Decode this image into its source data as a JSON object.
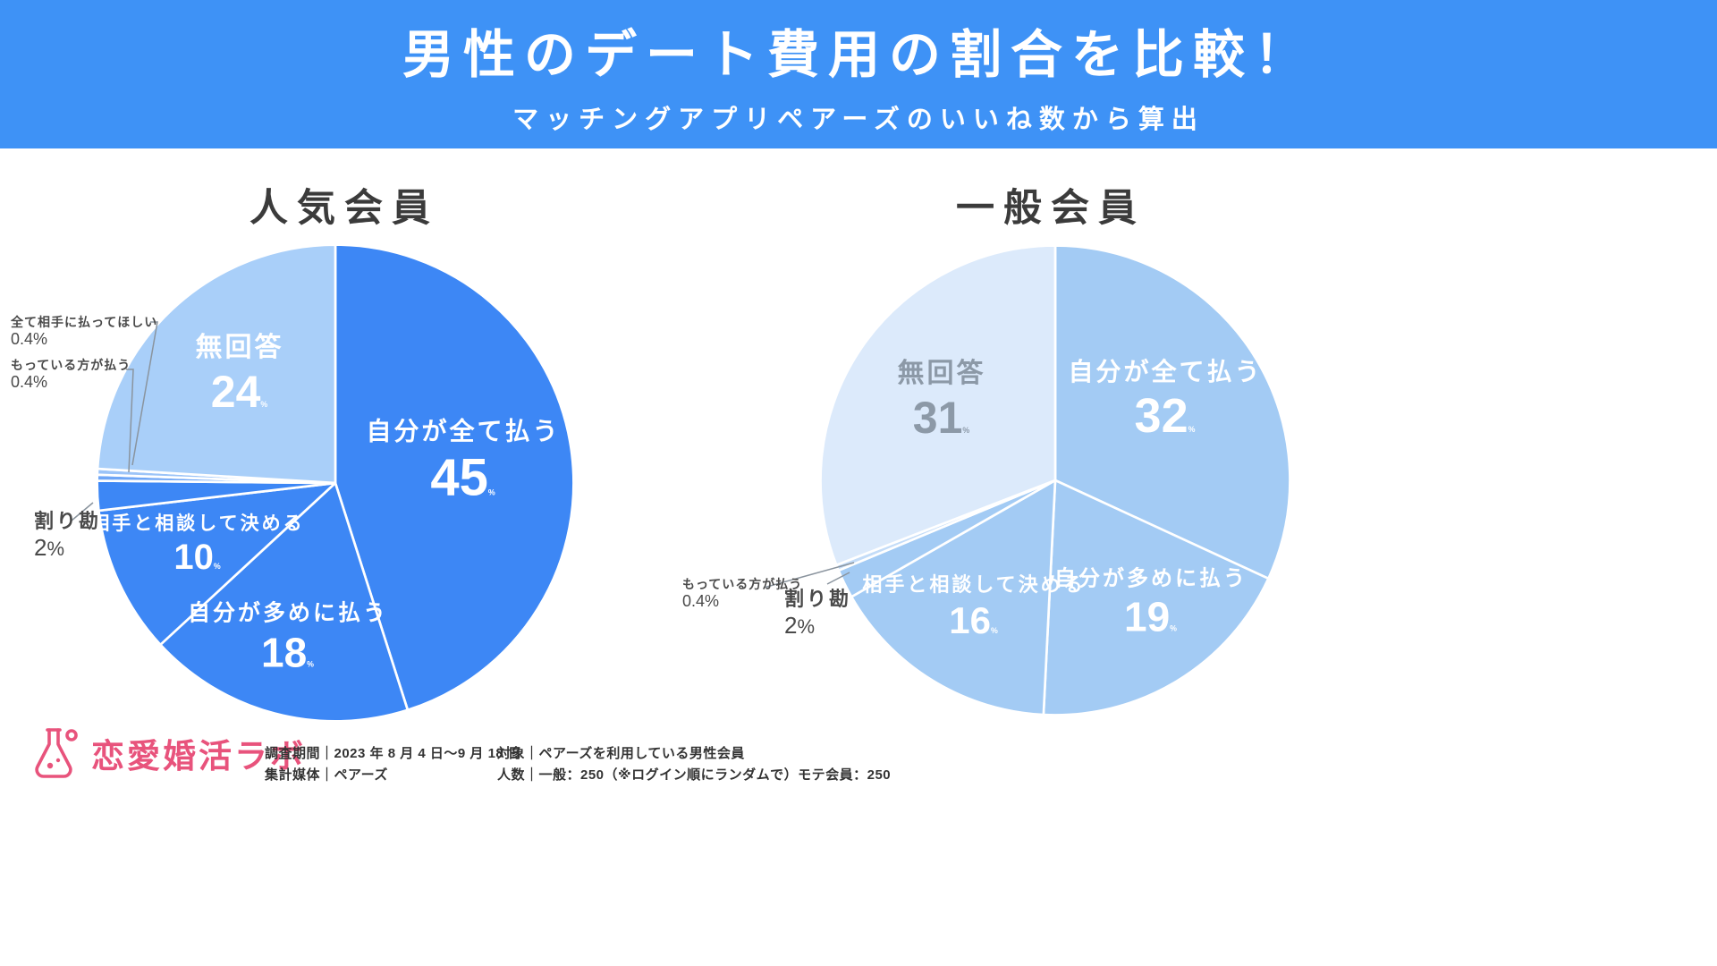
{
  "banner": {
    "title": "男性のデート費用の割合を比較！",
    "subtitle": "マッチングアプリペアーズのいいね数から算出",
    "bg_color": "#3E92F6",
    "text_color": "#FFFFFF"
  },
  "chart_data": [
    {
      "type": "pie",
      "title": "人気会員",
      "start_angle_deg": 0,
      "direction": "clockwise",
      "slices": [
        {
          "label": "自分が全て払う",
          "value": 45,
          "display": "45",
          "unit": "%",
          "color": "#3D87F5",
          "text_color": "#FFFFFF"
        },
        {
          "label": "自分が多めに払う",
          "value": 18,
          "display": "18",
          "unit": "%",
          "color": "#3D87F5",
          "text_color": "#FFFFFF"
        },
        {
          "label": "相手と相談して決める",
          "value": 10,
          "display": "10",
          "unit": "%",
          "color": "#3D87F5",
          "text_color": "#FFFFFF"
        },
        {
          "label": "割り勘",
          "value": 2,
          "display": "2",
          "unit": "%",
          "color": "#3D87F5",
          "text_color": "#4A4A4A"
        },
        {
          "label": "もっている方が払う",
          "value": 0.4,
          "display": "0.4",
          "unit": "%",
          "color": "#6FA6F6",
          "text_color": "#4A4A4A"
        },
        {
          "label": "全て相手に払ってほしい",
          "value": 0.4,
          "display": "0.4",
          "unit": "%",
          "color": "#9CC4F8",
          "text_color": "#4A4A4A"
        },
        {
          "label": "無回答",
          "value": 24,
          "display": "24",
          "unit": "%",
          "color": "#A9CFF9",
          "text_color": "#FFFFFF"
        }
      ]
    },
    {
      "type": "pie",
      "title": "一般会員",
      "start_angle_deg": 0,
      "direction": "clockwise",
      "slices": [
        {
          "label": "自分が全て払う",
          "value": 32,
          "display": "32",
          "unit": "%",
          "color": "#A3CBF4",
          "text_color": "#FFFFFF"
        },
        {
          "label": "自分が多めに払う",
          "value": 19,
          "display": "19",
          "unit": "%",
          "color": "#A3CBF4",
          "text_color": "#FFFFFF"
        },
        {
          "label": "相手と相談して決める",
          "value": 16,
          "display": "16",
          "unit": "%",
          "color": "#A3CBF4",
          "text_color": "#FFFFFF"
        },
        {
          "label": "割り勘",
          "value": 2,
          "display": "2",
          "unit": "%",
          "color": "#A3CBF4",
          "text_color": "#4A4A4A"
        },
        {
          "label": "もっている方が払う",
          "value": 0.4,
          "display": "0.4",
          "unit": "%",
          "color": "#C3DCF8",
          "text_color": "#4A4A4A"
        },
        {
          "label": "無回答",
          "value": 31,
          "display": "31",
          "unit": "%",
          "color": "#DCEAFB",
          "text_color": "#8C99A7"
        }
      ]
    }
  ],
  "footer": {
    "logo_text": "恋愛婚活ラボ",
    "logo_color": "#E8537C",
    "info": [
      {
        "lines": [
          "調査期間｜2023 年 8 月 4 日～9 月 18 日",
          "集計媒体｜ペアーズ"
        ]
      },
      {
        "lines": [
          "対象｜ペアーズを利用している男性会員",
          "人数｜一般：250（※ログイン順にランダムで）モテ会員：250"
        ]
      }
    ]
  }
}
